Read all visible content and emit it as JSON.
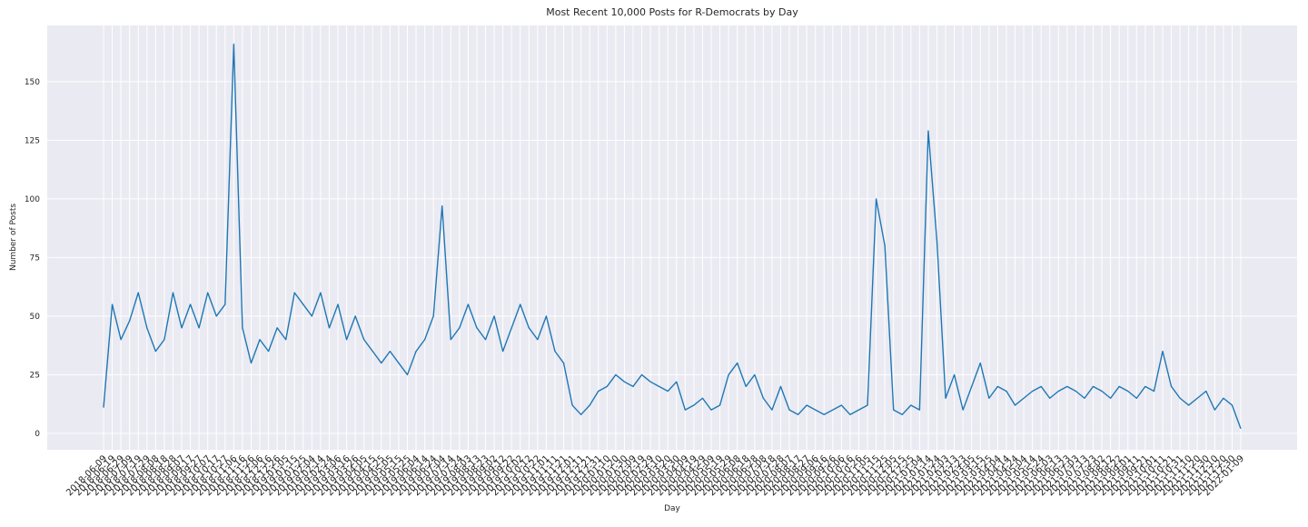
{
  "chart_data": {
    "type": "line",
    "title": "Most Recent 10,000 Posts for R-Democrats by Day",
    "x_label": "Day",
    "y_label": "Number of Posts",
    "categories": [
      "2018-06-09",
      "2018-06-19",
      "2018-06-29",
      "2018-07-09",
      "2018-07-19",
      "2018-07-29",
      "2018-08-08",
      "2018-08-18",
      "2018-08-28",
      "2018-09-07",
      "2018-09-17",
      "2018-09-27",
      "2018-10-07",
      "2018-10-17",
      "2018-10-27",
      "2018-11-06",
      "2018-11-16",
      "2018-11-26",
      "2018-12-06",
      "2018-12-16",
      "2018-12-26",
      "2019-01-05",
      "2019-01-15",
      "2019-01-25",
      "2019-02-04",
      "2019-02-14",
      "2019-02-24",
      "2019-03-06",
      "2019-03-16",
      "2019-03-26",
      "2019-04-05",
      "2019-04-15",
      "2019-04-25",
      "2019-05-05",
      "2019-05-15",
      "2019-05-25",
      "2019-06-04",
      "2019-06-14",
      "2019-06-24",
      "2019-07-04",
      "2019-07-14",
      "2019-07-24",
      "2019-08-03",
      "2019-08-13",
      "2019-08-23",
      "2019-09-02",
      "2019-09-12",
      "2019-09-22",
      "2019-10-02",
      "2019-10-12",
      "2019-10-22",
      "2019-11-01",
      "2019-11-11",
      "2019-11-21",
      "2019-12-01",
      "2019-12-11",
      "2019-12-21",
      "2019-12-31",
      "2020-01-10",
      "2020-01-20",
      "2020-01-30",
      "2020-02-09",
      "2020-02-19",
      "2020-02-29",
      "2020-03-10",
      "2020-03-20",
      "2020-03-30",
      "2020-04-09",
      "2020-04-19",
      "2020-04-29",
      "2020-05-09",
      "2020-05-19",
      "2020-05-29",
      "2020-06-08",
      "2020-06-18",
      "2020-06-28",
      "2020-07-08",
      "2020-07-18",
      "2020-07-28",
      "2020-08-07",
      "2020-08-17",
      "2020-08-27",
      "2020-09-06",
      "2020-09-16",
      "2020-09-26",
      "2020-10-06",
      "2020-10-16",
      "2020-10-26",
      "2020-11-05",
      "2020-11-15",
      "2020-11-25",
      "2020-12-05",
      "2020-12-15",
      "2020-12-25",
      "2021-01-04",
      "2021-01-14",
      "2021-01-24",
      "2021-02-03",
      "2021-02-13",
      "2021-02-23",
      "2021-03-05",
      "2021-03-15",
      "2021-03-25",
      "2021-04-04",
      "2021-04-14",
      "2021-04-24",
      "2021-05-04",
      "2021-05-14",
      "2021-05-24",
      "2021-06-03",
      "2021-06-13",
      "2021-06-23",
      "2021-07-03",
      "2021-07-13",
      "2021-07-23",
      "2021-08-02",
      "2021-08-12",
      "2021-08-22",
      "2021-09-01",
      "2021-09-11",
      "2021-09-21",
      "2021-10-01",
      "2021-10-11",
      "2021-10-21",
      "2021-10-31",
      "2021-11-10",
      "2021-11-20",
      "2021-11-30",
      "2021-12-10",
      "2021-12-20",
      "2021-12-30",
      "2022-01-09"
    ],
    "series": [
      {
        "name": "Number of Posts",
        "color": "#1f77b4",
        "values": [
          11,
          55,
          40,
          48,
          60,
          45,
          35,
          40,
          60,
          45,
          55,
          45,
          60,
          50,
          55,
          166,
          45,
          30,
          40,
          35,
          45,
          40,
          60,
          55,
          50,
          60,
          45,
          55,
          40,
          50,
          40,
          35,
          30,
          35,
          30,
          25,
          35,
          40,
          50,
          97,
          40,
          45,
          55,
          45,
          40,
          50,
          35,
          45,
          55,
          45,
          40,
          50,
          35,
          30,
          12,
          8,
          12,
          18,
          20,
          25,
          22,
          20,
          25,
          22,
          20,
          18,
          22,
          10,
          12,
          15,
          10,
          12,
          25,
          30,
          20,
          25,
          15,
          10,
          20,
          10,
          8,
          12,
          10,
          8,
          10,
          12,
          8,
          10,
          12,
          100,
          80,
          10,
          8,
          12,
          10,
          129,
          82,
          15,
          25,
          10,
          20,
          30,
          15,
          20,
          18,
          12,
          15,
          18,
          20,
          15,
          18,
          20,
          18,
          15,
          20,
          18,
          15,
          20,
          18,
          15,
          20,
          18,
          35,
          20,
          15,
          12,
          15,
          18,
          10,
          15,
          12,
          2
        ]
      }
    ],
    "ylim": [
      -7,
      174
    ],
    "yticks": [
      0,
      25,
      50,
      75,
      100,
      125,
      150
    ],
    "grid": true
  }
}
